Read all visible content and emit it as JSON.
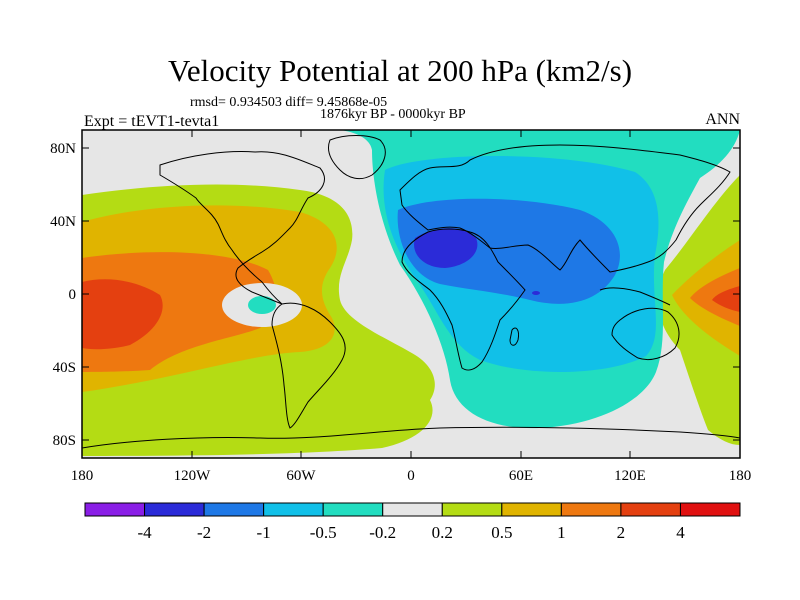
{
  "title": "Velocity Potential at 200 hPa (km2/s)",
  "stats": "rmsd= 0.934503 diff= 9.45868e-05",
  "period": "1876kyr BP - 0000kyr BP",
  "expt": "Expt = tEVT1-tevta1",
  "season": "ANN",
  "map": {
    "lat_ticks": [
      "80N",
      "40N",
      "0",
      "40S",
      "80S"
    ],
    "lon_ticks": [
      "180",
      "120W",
      "60W",
      "0",
      "60E",
      "120E",
      "180"
    ]
  },
  "colorbar": {
    "labels": [
      "-4",
      "-2",
      "-1",
      "-0.5",
      "-0.2",
      "0.2",
      "0.5",
      "1",
      "2",
      "4"
    ],
    "colors": [
      "#8a1ee6",
      "#2b2bd8",
      "#1e78e6",
      "#11c0e8",
      "#22ddc0",
      "#e6e6e6",
      "#b4dc14",
      "#e0b400",
      "#ee7810",
      "#e44010",
      "#e01010"
    ]
  }
}
